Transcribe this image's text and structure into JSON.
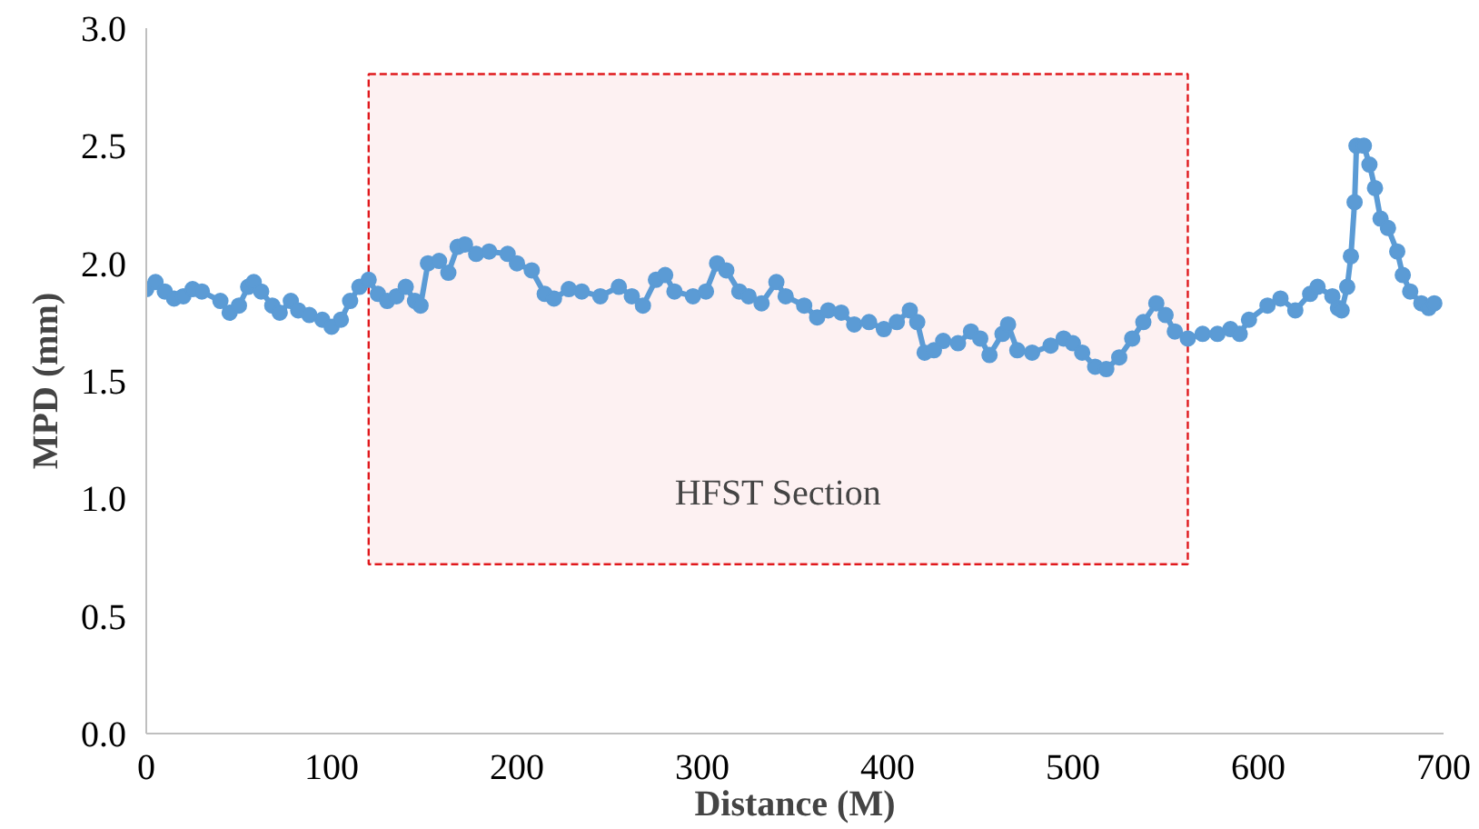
{
  "chart_data": {
    "type": "line",
    "xlabel": "Distance (M)",
    "ylabel": "MPD (mm)",
    "xlim": [
      0,
      700
    ],
    "ylim": [
      0,
      3
    ],
    "xticks": [
      0,
      100,
      200,
      300,
      400,
      500,
      600,
      700
    ],
    "yticks": [
      {
        "value": 0,
        "label": "0.0"
      },
      {
        "value": 0.5,
        "label": "0.5"
      },
      {
        "value": 1,
        "label": "1.0"
      },
      {
        "value": 1.5,
        "label": "1.5"
      },
      {
        "value": 2,
        "label": "2.0"
      },
      {
        "value": 2.5,
        "label": "2.5"
      },
      {
        "value": 3,
        "label": "3.0"
      }
    ],
    "grid": false,
    "marker": "circle",
    "line_style": "solid",
    "bands": [
      {
        "axis": "x",
        "from": 120,
        "to": 562,
        "label": "HFST Section",
        "color": "#e0191d"
      }
    ],
    "x": [
      0,
      5,
      10,
      15,
      20,
      25,
      30,
      40,
      45,
      50,
      55,
      58,
      62,
      68,
      72,
      78,
      82,
      88,
      95,
      100,
      105,
      110,
      115,
      120,
      125,
      130,
      135,
      140,
      145,
      148,
      152,
      158,
      163,
      168,
      172,
      178,
      185,
      195,
      200,
      208,
      215,
      220,
      228,
      235,
      245,
      255,
      262,
      268,
      275,
      280,
      285,
      295,
      302,
      308,
      313,
      320,
      325,
      332,
      340,
      345,
      355,
      362,
      368,
      375,
      382,
      390,
      398,
      405,
      412,
      416,
      420,
      425,
      430,
      438,
      445,
      450,
      455,
      462,
      465,
      470,
      478,
      488,
      495,
      500,
      505,
      512,
      518,
      525,
      532,
      538,
      545,
      550,
      555,
      562,
      570,
      578,
      585,
      590,
      595,
      605,
      612,
      620,
      628,
      632,
      640,
      643,
      645,
      648,
      650,
      652,
      653,
      657,
      660,
      663,
      666,
      670,
      675,
      678,
      682,
      688,
      692,
      695
    ],
    "series": [
      {
        "color": "#5b9bd5",
        "values": [
          1.89,
          1.92,
          1.88,
          1.85,
          1.86,
          1.89,
          1.88,
          1.84,
          1.79,
          1.82,
          1.9,
          1.92,
          1.88,
          1.82,
          1.79,
          1.84,
          1.8,
          1.78,
          1.76,
          1.73,
          1.76,
          1.84,
          1.9,
          1.93,
          1.87,
          1.84,
          1.86,
          1.9,
          1.84,
          1.82,
          2.0,
          2.01,
          1.96,
          2.07,
          2.08,
          2.04,
          2.05,
          2.04,
          2.0,
          1.97,
          1.87,
          1.85,
          1.89,
          1.88,
          1.86,
          1.9,
          1.86,
          1.82,
          1.93,
          1.95,
          1.88,
          1.86,
          1.88,
          2.0,
          1.97,
          1.88,
          1.86,
          1.83,
          1.92,
          1.86,
          1.82,
          1.77,
          1.8,
          1.79,
          1.74,
          1.75,
          1.72,
          1.75,
          1.8,
          1.75,
          1.62,
          1.63,
          1.67,
          1.66,
          1.71,
          1.68,
          1.61,
          1.7,
          1.74,
          1.63,
          1.62,
          1.65,
          1.68,
          1.66,
          1.62,
          1.56,
          1.55,
          1.6,
          1.68,
          1.75,
          1.83,
          1.78,
          1.71,
          1.68,
          1.7,
          1.7,
          1.72,
          1.7,
          1.76,
          1.82,
          1.85,
          1.8,
          1.87,
          1.9,
          1.86,
          1.81,
          1.8,
          1.9,
          2.03,
          2.26,
          2.5,
          2.5,
          2.42,
          2.32,
          2.19,
          2.15,
          2.05,
          1.95,
          1.88,
          1.83,
          1.81,
          1.83
        ]
      }
    ]
  }
}
